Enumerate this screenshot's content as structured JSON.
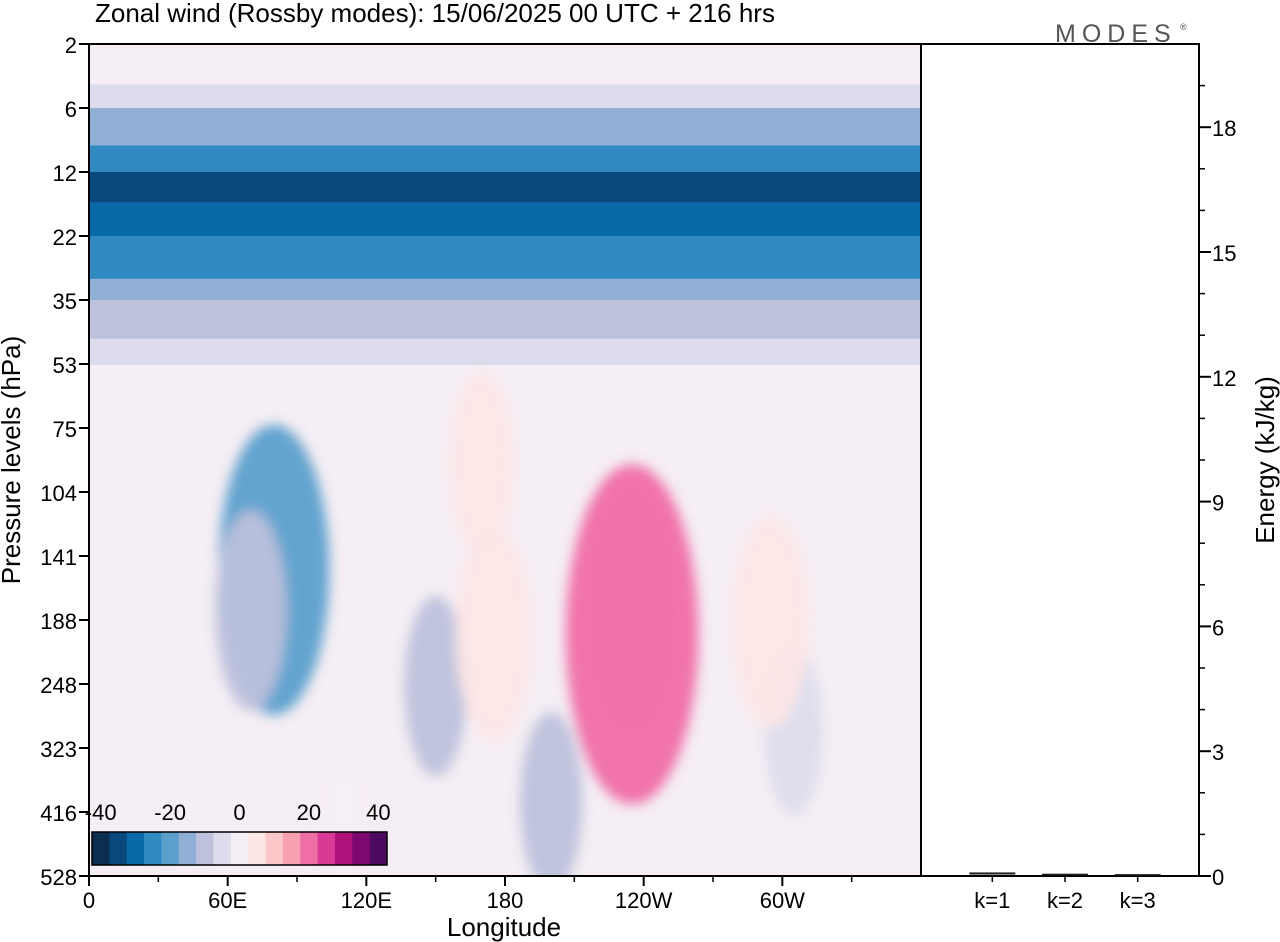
{
  "chart_data": {
    "type": "heatmap",
    "title": "Zonal wind (Rossby modes):  15/06/2025  00 UTC  + 216 hrs",
    "watermark": "MODES",
    "watermark_mark": "®",
    "xlabel": "Longitude",
    "ylabel": "Pressure levels (hPa)",
    "xtick_labels": [
      "0",
      "60E",
      "120E",
      "180",
      "120W",
      "60W"
    ],
    "xtick_lon_east": [
      0,
      60,
      120,
      180,
      240,
      300
    ],
    "xlim_lon_east": [
      0,
      360
    ],
    "ytick_labels": [
      "2",
      "6",
      "12",
      "22",
      "35",
      "53",
      "75",
      "104",
      "141",
      "188",
      "248",
      "323",
      "416",
      "528"
    ],
    "y_scale": "model levels (top 2 hPa, bottom 528 hPa)",
    "colorbar": {
      "tick_labels": [
        "-40",
        "-20",
        "0",
        "20",
        "40"
      ],
      "levels": [
        -40,
        -35,
        -30,
        -25,
        -20,
        -15,
        -10,
        -5,
        0,
        5,
        10,
        15,
        20,
        25,
        30,
        35,
        40
      ],
      "colors": [
        "#0c2e4f",
        "#08487d",
        "#0a6aa8",
        "#318ac2",
        "#5b9fcc",
        "#8fb0d4",
        "#bdc1dc",
        "#dcdcec",
        "#f5eef4",
        "#fde6e6",
        "#fbc7c9",
        "#f7a0b0",
        "#f06ea6",
        "#d83a96",
        "#ad127a",
        "#7d086f",
        "#4c0a5e"
      ]
    },
    "field_layers": [
      {
        "name": "stratosphere",
        "rows_hpa": [
          {
            "p": 2,
            "u": 3
          },
          {
            "p": 4,
            "u": -5
          },
          {
            "p": 6,
            "u": -12
          },
          {
            "p": 9,
            "u": -22
          },
          {
            "p": 12,
            "u": -32
          },
          {
            "p": 16,
            "u": -27
          },
          {
            "p": 22,
            "u": -22
          },
          {
            "p": 30,
            "u": -14
          },
          {
            "p": 35,
            "u": -9
          },
          {
            "p": 45,
            "u": -4
          },
          {
            "p": 53,
            "u": 1
          }
        ]
      },
      {
        "name": "troposphere_features",
        "blobs": [
          {
            "lon": 80,
            "p": 150,
            "u": -17
          },
          {
            "lon": 70,
            "p": 180,
            "u": -8
          },
          {
            "lon": 150,
            "p": 250,
            "u": -6
          },
          {
            "lon": 200,
            "p": 400,
            "u": -6
          },
          {
            "lon": 305,
            "p": 300,
            "u": -5
          },
          {
            "lon": 170,
            "p": 90,
            "u": 6
          },
          {
            "lon": 175,
            "p": 200,
            "u": 9
          },
          {
            "lon": 235,
            "p": 180,
            "u": 13
          },
          {
            "lon": 235,
            "p": 200,
            "u": 22
          },
          {
            "lon": 295,
            "p": 190,
            "u": 9
          },
          {
            "lon": 110,
            "p": 450,
            "u": 4
          }
        ]
      }
    ],
    "energy_panel": {
      "ylabel": "Energy (kJ/kg)",
      "ytick_labels": [
        "0",
        "3",
        "6",
        "9",
        "12",
        "15",
        "18"
      ],
      "ylim": [
        0,
        20
      ],
      "categories": [
        "k=1",
        "k=2",
        "k=3"
      ],
      "values": [
        0.05,
        0.02,
        0.01
      ]
    }
  }
}
